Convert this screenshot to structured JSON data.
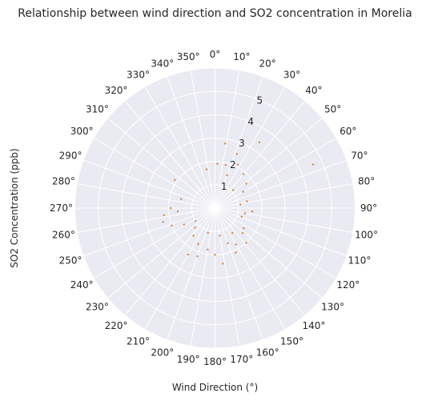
{
  "chart_data": {
    "type": "scatter",
    "projection": "polar",
    "title": "Relationship between wind direction and SO2 concentration in Morelia",
    "xlabel": "Wind Direction (°)",
    "ylabel": "SO2 Concentration (ppb)",
    "theta_zero": "north",
    "theta_direction": "clockwise",
    "theta_ticks": [
      "0°",
      "10°",
      "20°",
      "30°",
      "40°",
      "50°",
      "60°",
      "70°",
      "80°",
      "90°",
      "100°",
      "110°",
      "120°",
      "130°",
      "140°",
      "150°",
      "160°",
      "170°",
      "180°",
      "190°",
      "200°",
      "210°",
      "220°",
      "230°",
      "240°",
      "250°",
      "260°",
      "270°",
      "280°",
      "290°",
      "300°",
      "310°",
      "320°",
      "330°",
      "340°",
      "350°"
    ],
    "r_ticks": [
      "1",
      "2",
      "3",
      "4",
      "5"
    ],
    "rlim": [
      0,
      6
    ],
    "grid": true,
    "colors": {
      "points": "#d08a44",
      "background": "#eaeaf2",
      "grid": "#ffffff"
    },
    "series": [
      {
        "points": [
          [
            9,
            2.8
          ],
          [
            22,
            2.5
          ],
          [
            34,
            3.4
          ],
          [
            66,
            4.6
          ],
          [
            28,
            2.1
          ],
          [
            14,
            1.9
          ],
          [
            3,
            1.9
          ],
          [
            348,
            1.7
          ],
          [
            305,
            2.1
          ],
          [
            270,
            1.9
          ],
          [
            262,
            2.2
          ],
          [
            255,
            2.3
          ],
          [
            248,
            2.0
          ],
          [
            265,
            1.6
          ],
          [
            285,
            1.5
          ],
          [
            210,
            2.3
          ],
          [
            205,
            1.7
          ],
          [
            200,
            2.2
          ],
          [
            172,
            2.4
          ],
          [
            155,
            2.1
          ],
          [
            160,
            1.6
          ],
          [
            138,
            2.0
          ],
          [
            132,
            1.6
          ],
          [
            150,
            1.8
          ],
          [
            125,
            1.5
          ],
          [
            100,
            1.3
          ],
          [
            95,
            1.6
          ],
          [
            108,
            1.2
          ],
          [
            82,
            1.1
          ],
          [
            78,
            1.4
          ],
          [
            226,
            1.2
          ],
          [
            236,
            1.0
          ],
          [
            40,
            1.9
          ],
          [
            52,
            1.7
          ],
          [
            60,
            1.4
          ],
          [
            20,
            1.5
          ],
          [
            45,
            1.1
          ],
          [
            242,
            1.5
          ],
          [
            218,
            1.5
          ],
          [
            190,
            1.8
          ],
          [
            180,
            2.0
          ],
          [
            196,
            1.1
          ],
          [
            170,
            1.2
          ],
          [
            145,
            1.3
          ]
        ]
      }
    ]
  }
}
